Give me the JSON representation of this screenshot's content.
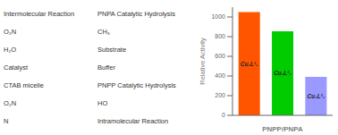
{
  "chart_data": {
    "type": "bar",
    "categories": [
      "Cu₂L¹₂",
      "Cu₂L²₂",
      "Cu₂L³₂"
    ],
    "values": [
      1050,
      855,
      390
    ],
    "colors": [
      "#ff5500",
      "#00cc00",
      "#9999ff"
    ],
    "xlabel": "PNPP/PNPA",
    "ylabel": "Relative Activity",
    "ylim": [
      0,
      1100
    ],
    "yticks": [
      0,
      200,
      400,
      600,
      800,
      1000
    ],
    "grid": false,
    "tick_labels": "y",
    "annotations": [
      "Intermolecular Reaction",
      "PNPA Catalytic Hydrolysis",
      "O₂N",
      "CH₃",
      "H₂O",
      "Substrate",
      "Catalyst",
      "Buffer",
      "CTAB micelle",
      "PNPP Catalytic Hydrolysis",
      "O₂N",
      "HO",
      "N",
      "Intramolecular Reaction"
    ]
  }
}
